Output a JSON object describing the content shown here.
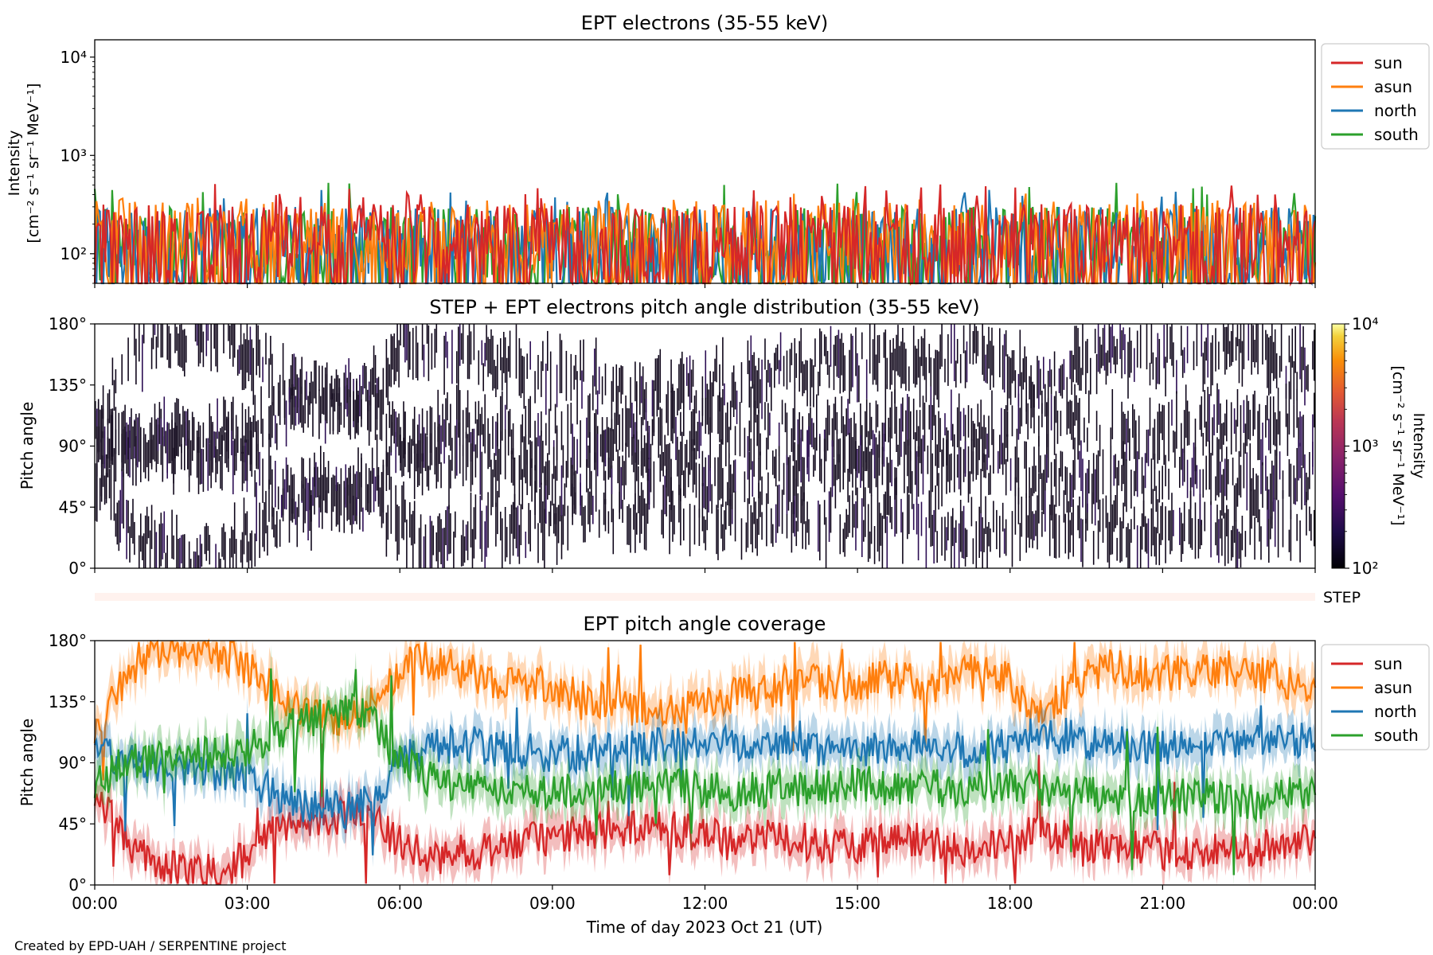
{
  "figure": {
    "footer": "Created by EPD-UAH / SERPENTINE project",
    "step_label": "STEP"
  },
  "colors": {
    "sun": "#d62728",
    "asun": "#ff7f0e",
    "north": "#1f77b4",
    "south": "#2ca02c",
    "step_strip": "#fff2ee"
  },
  "chart_data": [
    {
      "type": "line",
      "title": "EPT electrons (35-55 keV)",
      "ylabel": "Intensity",
      "ylabel_units": "[cm⁻² s⁻¹ sr⁻¹ MeV⁻¹]",
      "yscale": "log",
      "ylim": [
        50,
        15000
      ],
      "yticks": [
        {
          "value": 100,
          "label": "10²"
        },
        {
          "value": 1000,
          "label": "10³"
        },
        {
          "value": 10000,
          "label": "10⁴"
        }
      ],
      "xlim_hours": [
        0,
        24
      ],
      "legend_placement": "outside-right-top",
      "series": [
        {
          "name": "sun",
          "color": "#d62728",
          "typical_range": [
            50,
            320
          ],
          "max": 520
        },
        {
          "name": "asun",
          "color": "#ff7f0e",
          "typical_range": [
            50,
            350
          ],
          "max": 420
        },
        {
          "name": "north",
          "color": "#1f77b4",
          "typical_range": [
            50,
            300
          ],
          "max": 480
        },
        {
          "name": "south",
          "color": "#2ca02c",
          "typical_range": [
            50,
            300
          ],
          "max": 530
        }
      ]
    },
    {
      "type": "heatmap",
      "title": "STEP + EPT electrons pitch angle distribution (35-55 keV)",
      "ylabel": "Pitch angle",
      "ylim": [
        0,
        180
      ],
      "yticks": [
        "0°",
        "45°",
        "90°",
        "135°",
        "180°"
      ],
      "colorbar": {
        "label": "Intensity",
        "units": "[cm⁻² s⁻¹ sr⁻¹ MeV⁻¹]",
        "scale": "log",
        "range": [
          100,
          10000
        ],
        "ticks": [
          "10²",
          "10³",
          "10⁴"
        ],
        "colormap": "inferno"
      },
      "grid": false
    },
    {
      "type": "line",
      "title": "EPT pitch angle coverage",
      "ylabel": "Pitch angle",
      "xlabel": "Time of day 2023 Oct 21 (UT)",
      "ylim": [
        0,
        180
      ],
      "yticks": [
        "0°",
        "45°",
        "90°",
        "135°",
        "180°"
      ],
      "xticks": [
        "00:00",
        "03:00",
        "06:00",
        "09:00",
        "12:00",
        "15:00",
        "18:00",
        "21:00",
        "00:00"
      ],
      "legend_placement": "outside-right-top",
      "x_hours": [
        0,
        0.5,
        1,
        1.5,
        2,
        2.5,
        3,
        3.5,
        4,
        4.5,
        5,
        5.5,
        6,
        6.5,
        7,
        7.5,
        8,
        8.5,
        9,
        9.5,
        10,
        10.5,
        11,
        11.5,
        12,
        12.5,
        13,
        13.5,
        14,
        14.5,
        15,
        15.5,
        16,
        16.5,
        17,
        17.5,
        18,
        18.5,
        19,
        19.5,
        20,
        20.5,
        21,
        21.5,
        22,
        22.5,
        23,
        23.5,
        24
      ],
      "series": [
        {
          "name": "sun",
          "color": "#d62728",
          "values": [
            70,
            40,
            18,
            12,
            8,
            10,
            20,
            38,
            45,
            50,
            52,
            48,
            30,
            20,
            22,
            25,
            28,
            32,
            35,
            38,
            40,
            42,
            45,
            40,
            38,
            36,
            35,
            33,
            32,
            30,
            30,
            32,
            35,
            30,
            28,
            26,
            30,
            40,
            35,
            30,
            28,
            26,
            25,
            24,
            24,
            26,
            28,
            30,
            30
          ]
        },
        {
          "name": "asun",
          "color": "#ff7f0e",
          "values": [
            110,
            145,
            168,
            172,
            175,
            170,
            160,
            145,
            130,
            125,
            120,
            135,
            160,
            165,
            160,
            155,
            150,
            148,
            145,
            140,
            135,
            130,
            128,
            132,
            135,
            140,
            142,
            145,
            148,
            150,
            150,
            152,
            150,
            148,
            155,
            160,
            150,
            125,
            140,
            155,
            160,
            158,
            155,
            156,
            158,
            160,
            155,
            150,
            145
          ]
        },
        {
          "name": "north",
          "color": "#1f77b4",
          "values": [
            100,
            90,
            88,
            86,
            85,
            84,
            80,
            70,
            60,
            58,
            55,
            62,
            90,
            100,
            105,
            103,
            100,
            98,
            96,
            97,
            98,
            100,
            102,
            104,
            105,
            106,
            106,
            104,
            102,
            100,
            100,
            102,
            104,
            101,
            99,
            100,
            102,
            112,
            110,
            106,
            104,
            102,
            100,
            102,
            104,
            104,
            106,
            108,
            108
          ]
        },
        {
          "name": "south",
          "color": "#2ca02c",
          "values": [
            75,
            88,
            92,
            95,
            96,
            98,
            100,
            110,
            120,
            125,
            128,
            120,
            90,
            80,
            76,
            74,
            72,
            70,
            68,
            70,
            72,
            72,
            74,
            72,
            70,
            68,
            70,
            72,
            72,
            74,
            75,
            72,
            70,
            72,
            70,
            72,
            75,
            70,
            68,
            66,
            65,
            64,
            65,
            66,
            66,
            62,
            60,
            66,
            70
          ]
        }
      ]
    }
  ]
}
